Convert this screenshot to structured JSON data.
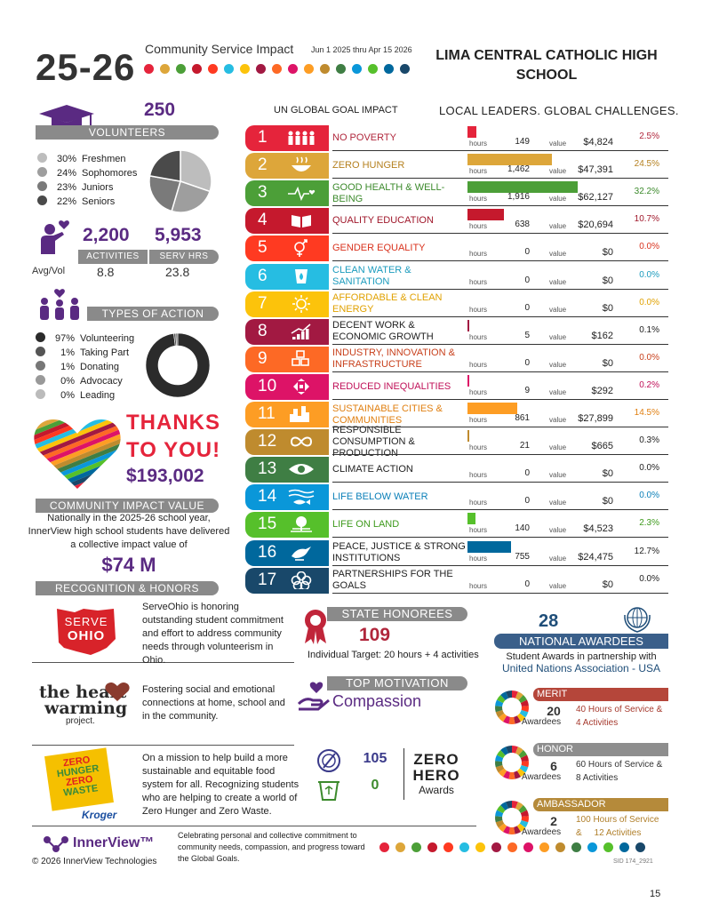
{
  "header": {
    "year": "25-26",
    "subtitle": "Community Service Impact",
    "date_range": "Jun 1 2025 thru Apr 15 2026",
    "school_line1": "LIMA CENTRAL CATHOLIC HIGH",
    "school_line2": "SCHOOL",
    "dot_colors": [
      "#e5243b",
      "#dda63a",
      "#4c9f38",
      "#c5192d",
      "#ff3a21",
      "#26bde2",
      "#fcc30b",
      "#a21942",
      "#fd6925",
      "#dd1367",
      "#fd9d24",
      "#bf8b2e",
      "#3f7e44",
      "#0a97d9",
      "#56c02b",
      "#00689d",
      "#19486a"
    ]
  },
  "volunteers": {
    "count": "250",
    "label": "VOLUNTEERS",
    "legend": [
      {
        "pct": "30%",
        "label": "Freshmen",
        "color": "#bdbdbd",
        "value": 30
      },
      {
        "pct": "24%",
        "label": "Sophomores",
        "color": "#9e9e9e",
        "value": 24
      },
      {
        "pct": "23%",
        "label": "Juniors",
        "color": "#7a7a7a",
        "value": 23
      },
      {
        "pct": "22%",
        "label": "Seniors",
        "color": "#4a4a4a",
        "value": 22
      }
    ]
  },
  "activities": {
    "activities_count": "2,200",
    "serv_hrs": "5,953",
    "activities_label": "ACTIVITIES",
    "serv_hrs_label": "SERV HRS",
    "avg_label": "Avg/Vol",
    "avg_activities": "8.8",
    "avg_hours": "23.8"
  },
  "types_of_action": {
    "label": "TYPES OF ACTION",
    "legend": [
      {
        "pct": "97%",
        "label": "Volunteering",
        "color": "#2b2b2b",
        "value": 97
      },
      {
        "pct": "1%",
        "label": "Taking Part",
        "color": "#555555",
        "value": 1
      },
      {
        "pct": "1%",
        "label": "Donating",
        "color": "#777777",
        "value": 1
      },
      {
        "pct": "0%",
        "label": "Advocacy",
        "color": "#999999",
        "value": 0
      },
      {
        "pct": "0%",
        "label": "Leading",
        "color": "#bbbbbb",
        "value": 0
      }
    ]
  },
  "thanks": {
    "line1": "THANKS",
    "line2": "TO YOU!",
    "amount": "$193,002"
  },
  "community_impact": {
    "label": "COMMUNITY IMPACT VALUE",
    "text1": "Nationally in the 2025-26 school year,",
    "text2": "InnerView high school students have delivered",
    "text3": "a collective impact value of",
    "amount": "$74 M"
  },
  "un_goals": {
    "title": "UN GLOBAL GOAL IMPACT",
    "tagline": "LOCAL LEADERS.  GLOBAL CHALLENGES.",
    "hours_label": "hours",
    "value_label": "value",
    "goals": [
      {
        "num": "1",
        "name": "NO POVERTY",
        "hours": "149",
        "value": "$4,824",
        "pct": "2.5%",
        "bar": 149,
        "color": "#e5243b",
        "textcolor": "#b0263b",
        "icon": "people-icon"
      },
      {
        "num": "2",
        "name": "ZERO HUNGER",
        "hours": "1,462",
        "value": "$47,391",
        "pct": "24.5%",
        "bar": 1462,
        "color": "#dda63a",
        "textcolor": "#b5801f",
        "icon": "bowl-icon"
      },
      {
        "num": "3",
        "name": "GOOD HEALTH & WELL-BEING",
        "hours": "1,916",
        "value": "$62,127",
        "pct": "32.2%",
        "bar": 1916,
        "color": "#4c9f38",
        "textcolor": "#3c8a2c",
        "icon": "heartbeat-icon"
      },
      {
        "num": "4",
        "name": "QUALITY EDUCATION",
        "hours": "638",
        "value": "$20,694",
        "pct": "10.7%",
        "bar": 638,
        "color": "#c5192d",
        "textcolor": "#a0182b",
        "icon": "book-icon"
      },
      {
        "num": "5",
        "name": "GENDER EQUALITY",
        "hours": "0",
        "value": "$0",
        "pct": "0.0%",
        "bar": 0,
        "color": "#ff3a21",
        "textcolor": "#d9321d",
        "icon": "gender-icon"
      },
      {
        "num": "6",
        "name": "CLEAN WATER & SANITATION",
        "hours": "0",
        "value": "$0",
        "pct": "0.0%",
        "bar": 0,
        "color": "#26bde2",
        "textcolor": "#1b9bbd",
        "icon": "water-icon"
      },
      {
        "num": "7",
        "name": "AFFORDABLE & CLEAN ENERGY",
        "hours": "0",
        "value": "$0",
        "pct": "0.0%",
        "bar": 0,
        "color": "#fcc30b",
        "textcolor": "#e0a100",
        "icon": "sun-icon"
      },
      {
        "num": "8",
        "name": "DECENT WORK & ECONOMIC GROWTH",
        "hours": "5",
        "value": "$162",
        "pct": "0.1%",
        "bar": 5,
        "color": "#a21942",
        "textcolor": "#222222",
        "icon": "growth-chart-icon"
      },
      {
        "num": "9",
        "name": "INDUSTRY, INNOVATION & INFRASTRUCTURE",
        "hours": "0",
        "value": "$0",
        "pct": "0.0%",
        "bar": 0,
        "color": "#fd6925",
        "textcolor": "#c8401c",
        "icon": "cubes-icon"
      },
      {
        "num": "10",
        "name": "REDUCED INEQUALITIES",
        "hours": "9",
        "value": "$292",
        "pct": "0.2%",
        "bar": 9,
        "color": "#dd1367",
        "textcolor": "#c01058",
        "icon": "arrows-icon"
      },
      {
        "num": "11",
        "name": "SUSTAINABLE CITIES & COMMUNITIES",
        "hours": "861",
        "value": "$27,899",
        "pct": "14.5%",
        "bar": 861,
        "color": "#fd9d24",
        "textcolor": "#e07f10",
        "icon": "city-icon"
      },
      {
        "num": "12",
        "name": "RESPONSIBLE CONSUMPTION & PRODUCTION",
        "hours": "21",
        "value": "$665",
        "pct": "0.3%",
        "bar": 21,
        "color": "#bf8b2e",
        "textcolor": "#222222",
        "icon": "infinity-icon"
      },
      {
        "num": "13",
        "name": "CLIMATE ACTION",
        "hours": "0",
        "value": "$0",
        "pct": "0.0%",
        "bar": 0,
        "color": "#3f7e44",
        "textcolor": "#222222",
        "icon": "eye-globe-icon"
      },
      {
        "num": "14",
        "name": "LIFE BELOW WATER",
        "hours": "0",
        "value": "$0",
        "pct": "0.0%",
        "bar": 0,
        "color": "#0a97d9",
        "textcolor": "#0a7fb8",
        "icon": "fish-icon"
      },
      {
        "num": "15",
        "name": "LIFE ON LAND",
        "hours": "140",
        "value": "$4,523",
        "pct": "2.3%",
        "bar": 140,
        "color": "#56c02b",
        "textcolor": "#3e9a1c",
        "icon": "tree-icon"
      },
      {
        "num": "16",
        "name": "PEACE, JUSTICE & STRONG INSTITUTIONS",
        "hours": "755",
        "value": "$24,475",
        "pct": "12.7%",
        "bar": 755,
        "color": "#00689d",
        "textcolor": "#222222",
        "icon": "dove-icon"
      },
      {
        "num": "17",
        "name": "PARTNERSHIPS FOR THE GOALS",
        "hours": "0",
        "value": "$0",
        "pct": "0.0%",
        "bar": 0,
        "color": "#19486a",
        "textcolor": "#222222",
        "icon": "rings-icon"
      }
    ]
  },
  "recognition": {
    "label": "RECOGNITION & HONORS",
    "serve_ohio_logo_top": "SERVE",
    "serve_ohio_logo_bottom": "OHIO",
    "serve_ohio_text": "ServeOhio is honoring outstanding student commitment and effort to address community needs through volunteerism in Ohio.",
    "heartwarming_logo_line1": "the heart",
    "heartwarming_logo_line2": "warming",
    "heartwarming_logo_line3": "project.",
    "heartwarming_text": "Fostering social and emotional connections at home, school and in the community.",
    "zero_hunger_logo": [
      "ZERO",
      "HUNGER",
      "ZERO",
      "WASTE"
    ],
    "kroger_logo": "Kroger",
    "zero_hunger_text": "On a mission to help build a more sustainable and equitable food system for all. Recognizing students who are helping to create a world of Zero Hunger and Zero Waste."
  },
  "state_honorees": {
    "label": "STATE HONOREES",
    "count": "109",
    "target": "Individual Target: 20 hours + 4 activities"
  },
  "top_motivation": {
    "label": "TOP MOTIVATION",
    "value": "Compassion"
  },
  "zero_hero": {
    "hunger_count": "105",
    "waste_count": "0",
    "line1": "ZERO",
    "line2": "HERO",
    "line3": "Awards"
  },
  "national": {
    "count": "28",
    "label": "NATIONAL AWARDEES",
    "text1": "Student Awards in partnership with",
    "text2": "United Nations Association - USA",
    "awards": [
      {
        "name": "MERIT",
        "count": "20",
        "awardees": "Awardees",
        "req1": "40 Hours of Service &",
        "req2": "4 Activities",
        "color": "#b5463a",
        "textcolor": "#a63a2e"
      },
      {
        "name": "HONOR",
        "count": "6",
        "awardees": "Awardees",
        "req1": "60 Hours of Service &",
        "req2": "8 Activities",
        "color": "#8e8e8e",
        "textcolor": "#333333"
      },
      {
        "name": "AMBASSADOR",
        "count": "2",
        "awardees": "Awardees",
        "req1": "100 Hours of Service",
        "req2": "&     12 Activities",
        "color": "#b58a3a",
        "textcolor": "#b07f2a"
      }
    ]
  },
  "footer": {
    "brand": "InnerView™",
    "copyright": "© 2026 InnerView Technologies",
    "celebrating": "Celebrating personal and collective commitment to community needs, compassion, and progress toward the Global Goals.",
    "sid": "SID 174_2921",
    "page_number": "15"
  }
}
